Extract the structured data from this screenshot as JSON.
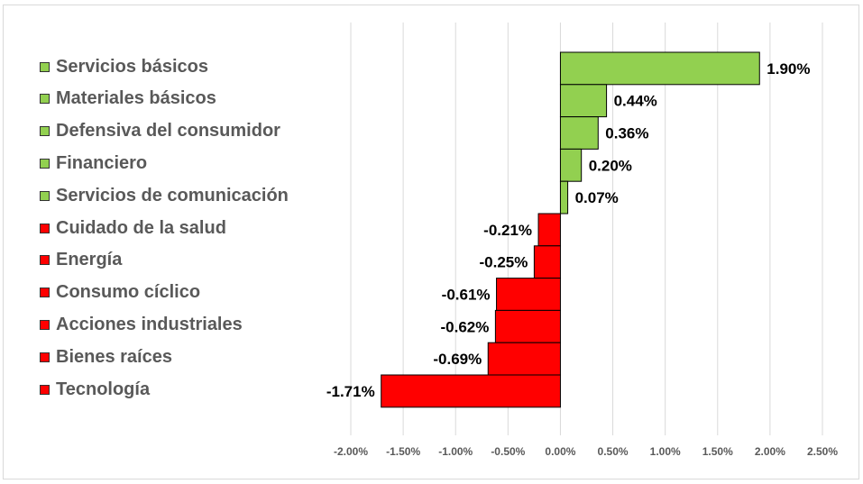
{
  "chart_data": {
    "type": "bar",
    "orientation": "horizontal",
    "categories": [
      "Servicios básicos",
      "Materiales básicos",
      "Defensiva del consumidor",
      "Financiero",
      "Servicios de comunicación",
      "Cuidado de la salud",
      "Energía",
      "Consumo cíclico",
      "Acciones industriales",
      "Bienes raíces",
      "Tecnología"
    ],
    "values": [
      1.9,
      0.44,
      0.36,
      0.2,
      0.07,
      -0.21,
      -0.25,
      -0.61,
      -0.62,
      -0.69,
      -1.71
    ],
    "data_labels": [
      "1.90%",
      "0.44%",
      "0.36%",
      "0.20%",
      "0.07%",
      "-0.21%",
      "-0.25%",
      "-0.61%",
      "-0.62%",
      "-0.69%",
      "-1.71%"
    ],
    "colors": [
      "#92d050",
      "#92d050",
      "#92d050",
      "#92d050",
      "#92d050",
      "#ff0000",
      "#ff0000",
      "#ff0000",
      "#ff0000",
      "#ff0000",
      "#ff0000"
    ],
    "xlim": [
      -2.0,
      2.5
    ],
    "x_ticks": [
      -2.0,
      -1.5,
      -1.0,
      -0.5,
      0.0,
      0.5,
      1.0,
      1.5,
      2.0,
      2.5
    ],
    "x_tick_labels": [
      "-2.00%",
      "-1.50%",
      "-1.00%",
      "-0.50%",
      "0.00%",
      "0.50%",
      "1.00%",
      "1.50%",
      "2.00%",
      "2.50%"
    ],
    "grid": true,
    "legend": "left",
    "title": "",
    "xlabel": "",
    "ylabel": ""
  }
}
